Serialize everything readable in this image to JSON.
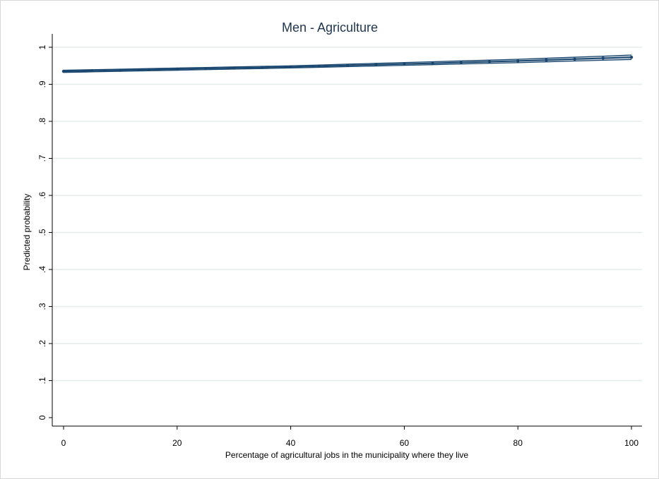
{
  "chart_data": {
    "type": "line",
    "title": "Men - Agriculture",
    "xlabel": "Percentage of agricultural jobs in the municipality where they live",
    "ylabel": "Predicted probability",
    "xlim": [
      0,
      100
    ],
    "ylim": [
      0,
      1
    ],
    "x_ticks": [
      0,
      20,
      40,
      60,
      80,
      100
    ],
    "x_tick_labels": [
      "0",
      "20",
      "40",
      "60",
      "80",
      "100"
    ],
    "y_ticks": [
      0,
      0.1,
      0.2,
      0.3,
      0.4,
      0.5,
      0.6,
      0.7,
      0.8,
      0.9,
      1
    ],
    "y_tick_labels": [
      "0",
      ".1",
      ".2",
      ".3",
      ".4",
      ".5",
      ".6",
      ".7",
      ".8",
      ".9",
      "1"
    ],
    "grid": true,
    "series": [
      {
        "x": [
          0,
          5,
          10,
          15,
          20,
          25,
          30,
          35,
          40,
          45,
          50,
          55,
          60,
          65,
          70,
          75,
          80,
          85,
          90,
          95,
          100
        ],
        "y": [
          0.935,
          0.9365,
          0.938,
          0.9395,
          0.941,
          0.9425,
          0.944,
          0.9455,
          0.947,
          0.949,
          0.951,
          0.953,
          0.955,
          0.957,
          0.959,
          0.961,
          0.963,
          0.9655,
          0.968,
          0.9705,
          0.973
        ],
        "ci_lower": [
          0.932,
          0.9335,
          0.935,
          0.9365,
          0.938,
          0.9395,
          0.941,
          0.9425,
          0.944,
          0.9458,
          0.9476,
          0.9494,
          0.9512,
          0.953,
          0.9548,
          0.9566,
          0.9584,
          0.9606,
          0.9628,
          0.965,
          0.967
        ],
        "ci_upper": [
          0.938,
          0.9395,
          0.941,
          0.9425,
          0.944,
          0.9455,
          0.947,
          0.9485,
          0.95,
          0.9522,
          0.9544,
          0.9566,
          0.9588,
          0.961,
          0.9632,
          0.9654,
          0.9676,
          0.9704,
          0.9732,
          0.976,
          0.979
        ],
        "color": "#1a476f"
      }
    ]
  },
  "colors": {
    "title": "#1e3550",
    "grid": "#e6ecec",
    "series": "#1a476f",
    "ci_fill": "#a9b8c6"
  }
}
